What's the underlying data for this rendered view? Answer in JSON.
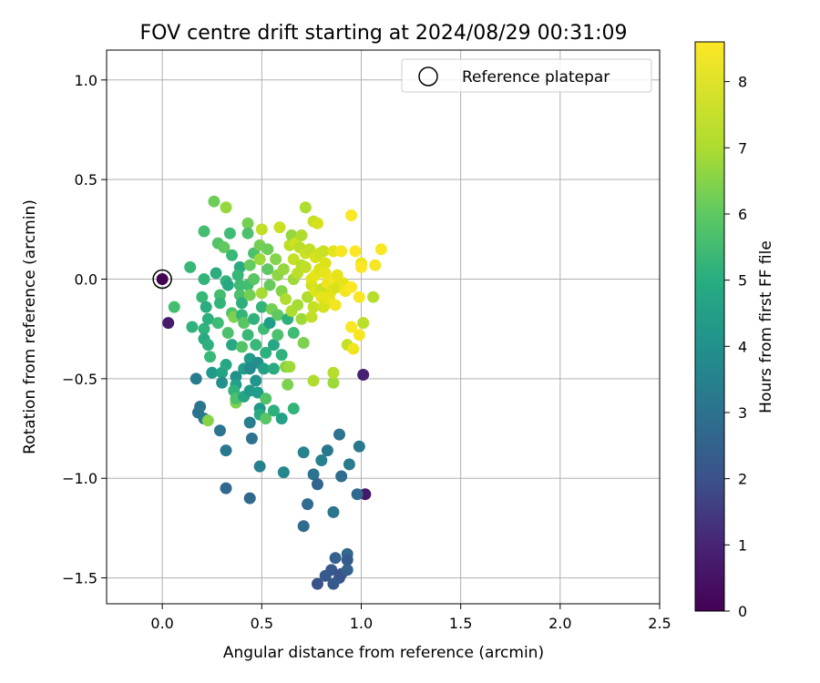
{
  "chart_data": {
    "type": "scatter",
    "title": "FOV centre drift starting at 2024/08/29 00:31:09",
    "xlabel": "Angular distance from reference (arcmin)",
    "ylabel": "Rotation from reference (arcmin)",
    "xlim": [
      -0.28,
      2.5
    ],
    "ylim": [
      -1.63,
      1.15
    ],
    "xticks": [
      0.0,
      0.5,
      1.0,
      1.5,
      2.0,
      2.5
    ],
    "xtick_labels": [
      "0.0",
      "0.5",
      "1.0",
      "1.5",
      "2.0",
      "2.5"
    ],
    "yticks": [
      -1.5,
      -1.0,
      -0.5,
      0.0,
      0.5,
      1.0
    ],
    "ytick_labels": [
      "−1.5",
      "−1.0",
      "−0.5",
      "0.0",
      "0.5",
      "1.0"
    ],
    "grid": true,
    "legend": {
      "position": "top-right",
      "entries": [
        "Reference platepar"
      ]
    },
    "colorbar": {
      "label": "Hours from first FF file",
      "range": [
        0,
        8.6
      ],
      "ticks": [
        0,
        1,
        2,
        3,
        4,
        5,
        6,
        7,
        8
      ],
      "tick_labels": [
        "0",
        "1",
        "2",
        "3",
        "4",
        "5",
        "6",
        "7",
        "8"
      ],
      "colormap": "viridis"
    },
    "reference": {
      "x": 0.0,
      "y": 0.0,
      "c": 0.0
    },
    "points": [
      [
        0.03,
        -0.22,
        0.6
      ],
      [
        0.06,
        -0.14,
        5.4
      ],
      [
        1.01,
        -0.48,
        0.7
      ],
      [
        1.02,
        -1.08,
        0.5
      ],
      [
        0.14,
        0.06,
        5.2
      ],
      [
        0.15,
        -0.24,
        5.0
      ],
      [
        0.17,
        -0.5,
        3.2
      ],
      [
        0.18,
        -0.67,
        2.9
      ],
      [
        0.19,
        -0.64,
        3.0
      ],
      [
        0.21,
        -0.7,
        3.1
      ],
      [
        0.23,
        -0.71,
        6.3
      ],
      [
        0.21,
        0.24,
        5.4
      ],
      [
        0.21,
        0.0,
        5.1
      ],
      [
        0.2,
        -0.09,
        5.2
      ],
      [
        0.22,
        -0.14,
        4.8
      ],
      [
        0.21,
        -0.25,
        5.0
      ],
      [
        0.21,
        -0.3,
        4.7
      ],
      [
        0.23,
        -0.2,
        4.9
      ],
      [
        0.23,
        -0.33,
        4.9
      ],
      [
        0.25,
        -0.47,
        4.2
      ],
      [
        0.24,
        -0.39,
        5.2
      ],
      [
        0.26,
        0.39,
        6.0
      ],
      [
        0.28,
        0.18,
        5.6
      ],
      [
        0.27,
        0.03,
        4.8
      ],
      [
        0.29,
        -0.08,
        5.4
      ],
      [
        0.29,
        -0.12,
        5.1
      ],
      [
        0.28,
        -0.22,
        5.3
      ],
      [
        0.3,
        -0.47,
        4.5
      ],
      [
        0.3,
        -0.52,
        3.9
      ],
      [
        0.29,
        -0.76,
        3.0
      ],
      [
        0.32,
        0.36,
        6.5
      ],
      [
        0.31,
        0.16,
        5.8
      ],
      [
        0.32,
        -0.01,
        5.0
      ],
      [
        0.33,
        -0.03,
        4.6
      ],
      [
        0.33,
        -0.27,
        5.5
      ],
      [
        0.32,
        -0.43,
        4.6
      ],
      [
        0.32,
        -0.86,
        3.1
      ],
      [
        0.32,
        -1.05,
        2.6
      ],
      [
        0.34,
        0.23,
        5.3
      ],
      [
        0.35,
        0.12,
        5.2
      ],
      [
        0.35,
        -0.17,
        5.6
      ],
      [
        0.36,
        -0.19,
        6.2
      ],
      [
        0.35,
        -0.33,
        4.6
      ],
      [
        0.37,
        -0.49,
        3.9
      ],
      [
        0.37,
        -0.53,
        4.4
      ],
      [
        0.36,
        -0.56,
        5.0
      ],
      [
        0.37,
        -0.62,
        6.2
      ],
      [
        0.37,
        -0.6,
        5.5
      ],
      [
        0.39,
        0.06,
        4.7
      ],
      [
        0.38,
        0.02,
        5.2
      ],
      [
        0.39,
        -0.03,
        5.3
      ],
      [
        0.39,
        -0.08,
        5.5
      ],
      [
        0.4,
        -0.12,
        4.9
      ],
      [
        0.4,
        -0.18,
        5.1
      ],
      [
        0.4,
        -0.34,
        5.6
      ],
      [
        0.41,
        -0.22,
        5.7
      ],
      [
        0.41,
        -0.45,
        4.3
      ],
      [
        0.41,
        -0.59,
        4.5
      ],
      [
        0.43,
        0.28,
        6.1
      ],
      [
        0.43,
        0.23,
        5.5
      ],
      [
        0.44,
        0.07,
        5.9
      ],
      [
        0.43,
        -0.03,
        5.4
      ],
      [
        0.44,
        -0.08,
        6.1
      ],
      [
        0.43,
        -0.28,
        5.2
      ],
      [
        0.44,
        -0.4,
        4.2
      ],
      [
        0.44,
        -0.45,
        3.7
      ],
      [
        0.44,
        -0.56,
        4.2
      ],
      [
        0.44,
        -0.72,
        3.3
      ],
      [
        0.44,
        -1.1,
        2.6
      ],
      [
        0.45,
        -0.8,
        2.9
      ],
      [
        0.46,
        0.13,
        5.5
      ],
      [
        0.46,
        0.0,
        5.7
      ],
      [
        0.46,
        -0.2,
        5.0
      ],
      [
        0.47,
        -0.33,
        5.2
      ],
      [
        0.48,
        -0.42,
        3.8
      ],
      [
        0.47,
        -0.51,
        4.0
      ],
      [
        0.48,
        -0.57,
        4.3
      ],
      [
        0.49,
        -0.65,
        4.1
      ],
      [
        0.49,
        -0.68,
        4.7
      ],
      [
        0.49,
        0.17,
        6.1
      ],
      [
        0.49,
        0.1,
        6.6
      ],
      [
        0.5,
        0.25,
        7.1
      ],
      [
        0.5,
        -0.07,
        6.7
      ],
      [
        0.5,
        -0.14,
        5.1
      ],
      [
        0.51,
        -0.25,
        5.3
      ],
      [
        0.52,
        -0.37,
        4.9
      ],
      [
        0.51,
        -0.45,
        4.4
      ],
      [
        0.52,
        -0.6,
        5.6
      ],
      [
        0.52,
        -0.7,
        5.7
      ],
      [
        0.49,
        -0.94,
        3.4
      ],
      [
        0.53,
        0.15,
        6.0
      ],
      [
        0.53,
        0.05,
        5.8
      ],
      [
        0.54,
        -0.03,
        5.9
      ],
      [
        0.55,
        -0.15,
        6.1
      ],
      [
        0.54,
        -0.22,
        4.3
      ],
      [
        0.56,
        -0.33,
        4.6
      ],
      [
        0.56,
        -0.45,
        4.7
      ],
      [
        0.56,
        -0.66,
        4.9
      ],
      [
        0.57,
        0.1,
        6.3
      ],
      [
        0.58,
        0.02,
        6.4
      ],
      [
        0.58,
        -0.18,
        5.8
      ],
      [
        0.58,
        -0.28,
        5.5
      ],
      [
        0.59,
        0.26,
        7.3
      ],
      [
        0.6,
        -0.06,
        6.3
      ],
      [
        0.6,
        -0.38,
        5.0
      ],
      [
        0.6,
        -0.7,
        4.4
      ],
      [
        0.61,
        -0.97,
        3.6
      ],
      [
        0.61,
        0.05,
        6.5
      ],
      [
        0.62,
        -0.1,
        6.8
      ],
      [
        0.62,
        -0.44,
        6.3
      ],
      [
        0.63,
        -0.2,
        4.9
      ],
      [
        0.63,
        -0.53,
        6.2
      ],
      [
        0.64,
        -0.44,
        6.6
      ],
      [
        0.64,
        0.17,
        7.0
      ],
      [
        0.65,
        0.22,
        6.5
      ],
      [
        0.65,
        -0.16,
        6.8
      ],
      [
        0.66,
        0.1,
        7.2
      ],
      [
        0.66,
        0.0,
        6.6
      ],
      [
        0.66,
        -0.27,
        5.3
      ],
      [
        0.66,
        -0.65,
        5.1
      ],
      [
        0.67,
        0.18,
        7.4
      ],
      [
        0.68,
        0.03,
        7.0
      ],
      [
        0.68,
        -0.13,
        6.7
      ],
      [
        0.69,
        0.16,
        7.0
      ],
      [
        0.7,
        0.22,
        6.8
      ],
      [
        0.7,
        0.07,
        6.9
      ],
      [
        0.7,
        -0.2,
        6.6
      ],
      [
        0.71,
        -0.32,
        6.2
      ],
      [
        0.71,
        -0.87,
        3.5
      ],
      [
        0.71,
        -1.24,
        2.7
      ],
      [
        0.72,
        0.36,
        6.8
      ],
      [
        0.72,
        0.13,
        7.3
      ],
      [
        0.72,
        0.06,
        7.1
      ],
      [
        0.73,
        -0.09,
        6.8
      ],
      [
        0.73,
        -1.13,
        2.7
      ],
      [
        0.74,
        0.15,
        7.1
      ],
      [
        0.75,
        -0.03,
        7.4
      ],
      [
        0.75,
        -0.19,
        7.1
      ],
      [
        0.76,
        0.29,
        7.2
      ],
      [
        0.75,
        0.0,
        7.8
      ],
      [
        0.76,
        -0.14,
        7.2
      ],
      [
        0.76,
        -0.51,
        6.8
      ],
      [
        0.76,
        -0.98,
        2.9
      ],
      [
        0.77,
        0.11,
        7.6
      ],
      [
        0.77,
        0.02,
        7.9
      ],
      [
        0.77,
        -0.06,
        7.7
      ],
      [
        0.78,
        0.28,
        7.5
      ],
      [
        0.78,
        -1.03,
        2.5
      ],
      [
        0.78,
        -1.53,
        2.0
      ],
      [
        0.79,
        0.13,
        7.4
      ],
      [
        0.79,
        0.05,
        7.7
      ],
      [
        0.8,
        -0.05,
        7.3
      ],
      [
        0.8,
        -0.09,
        7.9
      ],
      [
        0.8,
        -0.91,
        3.4
      ],
      [
        0.81,
        0.14,
        7.3
      ],
      [
        0.81,
        -0.14,
        7.5
      ],
      [
        0.82,
        0.08,
        7.7
      ],
      [
        0.82,
        0.03,
        8.0
      ],
      [
        0.82,
        -1.49,
        2.2
      ],
      [
        0.83,
        -0.12,
        7.6
      ],
      [
        0.83,
        -0.02,
        8.2
      ],
      [
        0.83,
        -0.86,
        3.1
      ],
      [
        0.84,
        0.0,
        8.1
      ],
      [
        0.84,
        -0.1,
        8.0
      ],
      [
        0.85,
        -0.06,
        7.8
      ],
      [
        0.85,
        -1.46,
        2.2
      ],
      [
        0.86,
        0.14,
        7.9
      ],
      [
        0.86,
        -0.52,
        6.6
      ],
      [
        0.86,
        -0.47,
        6.9
      ],
      [
        0.86,
        -1.17,
        3.0
      ],
      [
        0.86,
        -1.53,
        2.2
      ],
      [
        0.87,
        -0.01,
        8.4
      ],
      [
        0.87,
        -0.13,
        8.3
      ],
      [
        0.87,
        -1.4,
        2.4
      ],
      [
        0.88,
        0.02,
        7.9
      ],
      [
        0.88,
        -0.04,
        7.6
      ],
      [
        0.89,
        -0.78,
        2.9
      ],
      [
        0.89,
        -1.5,
        2.2
      ],
      [
        0.9,
        -0.99,
        2.7
      ],
      [
        0.9,
        -1.48,
        2.0
      ],
      [
        0.9,
        0.14,
        8.4
      ],
      [
        0.91,
        -0.02,
        7.9
      ],
      [
        0.92,
        -0.06,
        8.3
      ],
      [
        0.93,
        -1.38,
        2.6
      ],
      [
        0.93,
        -1.41,
        2.2
      ],
      [
        0.93,
        -1.46,
        2.4
      ],
      [
        0.93,
        -0.33,
        7.2
      ],
      [
        0.94,
        -0.93,
        3.2
      ],
      [
        0.95,
        0.32,
        8.5
      ],
      [
        0.95,
        -0.04,
        8.6
      ],
      [
        0.95,
        -0.24,
        8.5
      ],
      [
        0.96,
        -0.35,
        8.2
      ],
      [
        0.97,
        0.14,
        8.6
      ],
      [
        0.98,
        -1.08,
        2.6
      ],
      [
        0.99,
        -0.84,
        3.1
      ],
      [
        0.99,
        -0.09,
        8.5
      ],
      [
        0.99,
        -0.28,
        8.4
      ],
      [
        1.0,
        0.08,
        8.1
      ],
      [
        1.0,
        0.06,
        8.6
      ],
      [
        1.01,
        -0.22,
        7.0
      ],
      [
        1.06,
        -0.09,
        6.9
      ],
      [
        1.07,
        0.07,
        8.4
      ],
      [
        1.1,
        0.15,
        8.5
      ]
    ]
  }
}
